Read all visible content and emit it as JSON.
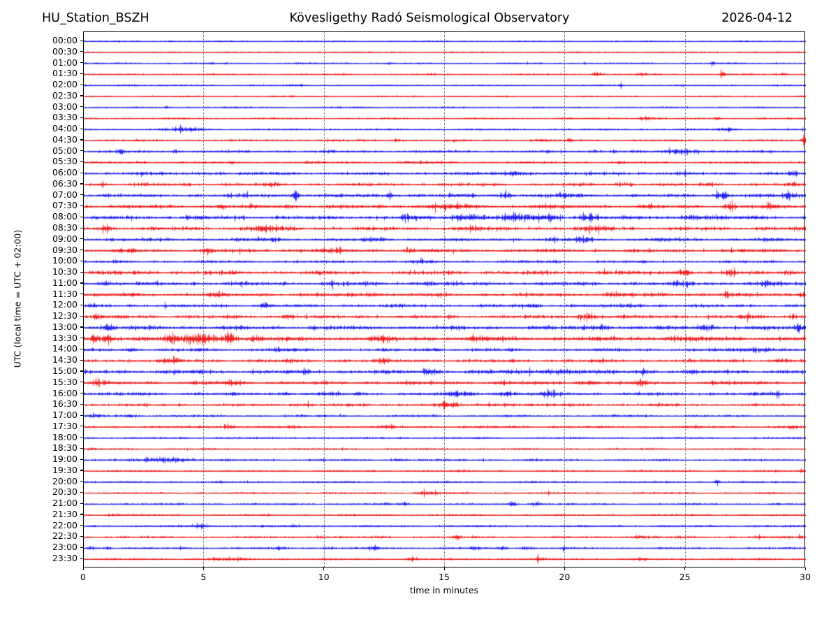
{
  "header": {
    "station": "HU_Station_BSZH",
    "observatory": "Kövesligethy Radó Seismological Observatory",
    "date": "2026-04-12"
  },
  "axes": {
    "xlabel": "time in minutes",
    "ylabel": "UTC (local time = UTC + 02:00)",
    "xticks": [
      0,
      5,
      10,
      15,
      20,
      25,
      30
    ],
    "x_range_minutes": [
      0,
      30
    ],
    "grid_vertical_dotted_at_minutes": [
      5,
      10,
      15,
      20,
      25
    ]
  },
  "colors": {
    "trace_even": "#0000ee",
    "trace_odd": "#ee0000",
    "grid": "#6e6e6e",
    "frame": "#000000",
    "background": "#ffffff"
  },
  "chart_data": {
    "type": "line",
    "subtype": "helicorder-dayplot",
    "title": "Kövesligethy Radó Seismological Observatory",
    "station": "HU_Station_BSZH",
    "date": "2026-04-12",
    "xlabel": "time in minutes",
    "ylabel": "UTC (local time = UTC + 02:00)",
    "minutes_per_row": 30,
    "x_ticks": [
      0,
      5,
      10,
      15,
      20,
      25,
      30
    ],
    "legend": "none",
    "grid_on": true,
    "amplitude_units": "relative (px half-amplitude); bursts = [center_minute, peak_amplitude, sigma_minutes]",
    "rows": [
      {
        "utc": "00:00",
        "color": "blue",
        "base_amplitude": 0.55,
        "bursts": [
          [
            3.6,
            1.2,
            0.05
          ]
        ]
      },
      {
        "utc": "00:30",
        "color": "red",
        "base_amplitude": 0.55,
        "bursts": []
      },
      {
        "utc": "01:00",
        "color": "blue",
        "base_amplitude": 0.6,
        "bursts": [
          [
            5.3,
            1.3,
            0.06
          ],
          [
            5.9,
            1.3,
            0.06
          ],
          [
            12.6,
            1.2,
            0.05
          ],
          [
            20.8,
            1.2,
            0.05
          ],
          [
            26.1,
            1.5,
            0.08
          ]
        ]
      },
      {
        "utc": "01:30",
        "color": "red",
        "base_amplitude": 0.6,
        "bursts": [
          [
            21.3,
            1.6,
            0.15
          ],
          [
            23.2,
            1.5,
            0.1
          ],
          [
            26.5,
            1.6,
            0.12
          ],
          [
            29.1,
            1.4,
            0.1
          ]
        ]
      },
      {
        "utc": "02:00",
        "color": "blue",
        "base_amplitude": 0.6,
        "bursts": [
          [
            1.9,
            1.0,
            0.3
          ],
          [
            9.0,
            0.8,
            0.1
          ],
          [
            22.3,
            2.6,
            0.05
          ]
        ]
      },
      {
        "utc": "02:30",
        "color": "red",
        "base_amplitude": 0.55,
        "bursts": []
      },
      {
        "utc": "03:00",
        "color": "blue",
        "base_amplitude": 0.6,
        "bursts": [
          [
            3.4,
            1.8,
            0.08
          ]
        ]
      },
      {
        "utc": "03:30",
        "color": "red",
        "base_amplitude": 0.65,
        "bursts": [
          [
            23.3,
            1.3,
            0.3
          ],
          [
            26.3,
            1.2,
            0.1
          ],
          [
            28.2,
            1.2,
            0.1
          ]
        ]
      },
      {
        "utc": "04:00",
        "color": "blue",
        "base_amplitude": 0.65,
        "bursts": [
          [
            4.2,
            2.0,
            0.45
          ],
          [
            26.7,
            1.3,
            0.3
          ]
        ]
      },
      {
        "utc": "04:30",
        "color": "red",
        "base_amplitude": 0.8,
        "bursts": [
          [
            13.0,
            1.2,
            0.2
          ],
          [
            19.0,
            1.0,
            0.2
          ],
          [
            20.2,
            1.8,
            0.1
          ],
          [
            29.9,
            3.5,
            0.08
          ]
        ]
      },
      {
        "utc": "05:00",
        "color": "blue",
        "base_amplitude": 1.0,
        "bursts": [
          [
            1.5,
            1.8,
            0.12
          ],
          [
            3.8,
            1.5,
            0.1
          ],
          [
            21.2,
            1.8,
            0.1
          ],
          [
            22.0,
            1.5,
            0.1
          ],
          [
            25.0,
            2.2,
            0.5
          ]
        ]
      },
      {
        "utc": "05:30",
        "color": "red",
        "base_amplitude": 0.9,
        "bursts": [
          [
            14.0,
            0.8,
            0.3
          ]
        ]
      },
      {
        "utc": "06:00",
        "color": "blue",
        "base_amplitude": 1.2,
        "bursts": [
          [
            2.3,
            1.2,
            0.15
          ],
          [
            5.6,
            1.0,
            0.2
          ],
          [
            18.0,
            1.5,
            0.6
          ],
          [
            22.2,
            1.3,
            0.2
          ],
          [
            29.5,
            1.8,
            0.15
          ]
        ]
      },
      {
        "utc": "06:30",
        "color": "red",
        "base_amplitude": 1.2,
        "bursts": [
          [
            0.8,
            1.5,
            0.1
          ],
          [
            7.8,
            1.3,
            0.15
          ],
          [
            22.5,
            1.2,
            0.3
          ],
          [
            26.0,
            1.2,
            0.2
          ],
          [
            29.5,
            1.5,
            0.15
          ]
        ]
      },
      {
        "utc": "07:00",
        "color": "blue",
        "base_amplitude": 1.4,
        "bursts": [
          [
            8.8,
            5.5,
            0.1
          ],
          [
            12.7,
            4.8,
            0.09
          ],
          [
            17.5,
            2.2,
            0.2
          ],
          [
            20.0,
            1.5,
            0.3
          ],
          [
            26.5,
            4.2,
            0.18
          ],
          [
            29.3,
            5.5,
            0.15
          ]
        ]
      },
      {
        "utc": "07:30",
        "color": "red",
        "base_amplitude": 1.4,
        "bursts": [
          [
            5.7,
            2.2,
            0.12
          ],
          [
            8.5,
            1.5,
            0.2
          ],
          [
            15.0,
            2.0,
            0.7
          ],
          [
            19.0,
            1.5,
            0.3
          ],
          [
            23.5,
            1.5,
            0.2
          ],
          [
            26.8,
            3.0,
            0.15
          ],
          [
            28.5,
            1.8,
            0.2
          ]
        ]
      },
      {
        "utc": "08:00",
        "color": "blue",
        "base_amplitude": 1.5,
        "bursts": [
          [
            13.5,
            1.8,
            0.4
          ],
          [
            16.0,
            3.0,
            0.5
          ],
          [
            18.0,
            3.2,
            0.4
          ],
          [
            19.3,
            3.5,
            0.3
          ],
          [
            21.0,
            2.8,
            0.3
          ],
          [
            25.3,
            2.0,
            0.3
          ]
        ]
      },
      {
        "utc": "08:30",
        "color": "red",
        "base_amplitude": 1.5,
        "bursts": [
          [
            0.9,
            2.5,
            0.15
          ],
          [
            7.5,
            2.2,
            0.4
          ],
          [
            16.2,
            1.8,
            0.2
          ],
          [
            21.5,
            1.6,
            0.3
          ]
        ]
      },
      {
        "utc": "09:00",
        "color": "blue",
        "base_amplitude": 1.3,
        "bursts": [
          [
            7.8,
            1.5,
            0.2
          ],
          [
            12.0,
            1.3,
            0.3
          ],
          [
            20.7,
            3.0,
            0.25
          ],
          [
            24.0,
            1.3,
            0.3
          ]
        ]
      },
      {
        "utc": "09:30",
        "color": "red",
        "base_amplitude": 1.3,
        "bursts": [
          [
            2.0,
            1.5,
            0.2
          ],
          [
            5.2,
            1.5,
            0.2
          ],
          [
            10.0,
            1.4,
            0.3
          ],
          [
            13.5,
            1.5,
            0.2
          ]
        ]
      },
      {
        "utc": "10:00",
        "color": "blue",
        "base_amplitude": 1.0,
        "bursts": [
          [
            14.0,
            1.0,
            0.3
          ]
        ]
      },
      {
        "utc": "10:30",
        "color": "red",
        "base_amplitude": 1.5,
        "bursts": [
          [
            21.7,
            1.5,
            0.2
          ],
          [
            25.0,
            2.5,
            0.2
          ],
          [
            26.8,
            1.6,
            0.2
          ],
          [
            29.3,
            1.5,
            0.2
          ]
        ]
      },
      {
        "utc": "11:00",
        "color": "blue",
        "base_amplitude": 1.5,
        "bursts": [
          [
            0.9,
            2.0,
            0.15
          ],
          [
            10.3,
            2.8,
            0.12
          ],
          [
            14.2,
            1.8,
            0.2
          ],
          [
            25.0,
            1.6,
            0.3
          ],
          [
            28.5,
            2.0,
            0.2
          ]
        ]
      },
      {
        "utc": "11:30",
        "color": "red",
        "base_amplitude": 1.4,
        "bursts": [
          [
            5.5,
            1.6,
            0.2
          ],
          [
            12.0,
            1.5,
            0.25
          ],
          [
            22.0,
            1.5,
            0.3
          ],
          [
            26.7,
            3.0,
            0.12
          ],
          [
            29.8,
            1.8,
            0.1
          ]
        ]
      },
      {
        "utc": "12:00",
        "color": "blue",
        "base_amplitude": 1.2,
        "bursts": [
          [
            7.5,
            2.8,
            0.1
          ],
          [
            18.5,
            1.4,
            0.3
          ],
          [
            22.8,
            1.5,
            0.2
          ]
        ]
      },
      {
        "utc": "12:30",
        "color": "red",
        "base_amplitude": 1.4,
        "bursts": [
          [
            0.5,
            2.2,
            0.1
          ],
          [
            8.5,
            1.6,
            0.2
          ],
          [
            21.0,
            3.0,
            0.35
          ],
          [
            27.5,
            1.6,
            0.2
          ],
          [
            29.5,
            1.8,
            0.15
          ]
        ]
      },
      {
        "utc": "13:00",
        "color": "blue",
        "base_amplitude": 1.6,
        "bursts": [
          [
            1.0,
            2.2,
            0.2
          ],
          [
            21.5,
            2.0,
            0.3
          ],
          [
            25.8,
            2.5,
            0.25
          ],
          [
            29.7,
            3.5,
            0.15
          ]
        ]
      },
      {
        "utc": "13:30",
        "color": "red",
        "base_amplitude": 1.8,
        "bursts": [
          [
            0.4,
            3.5,
            0.1
          ],
          [
            1.0,
            4.0,
            0.15
          ],
          [
            2.4,
            2.5,
            0.2
          ],
          [
            3.6,
            3.0,
            0.2
          ],
          [
            4.8,
            5.0,
            0.5
          ],
          [
            6.1,
            4.5,
            0.2
          ],
          [
            7.2,
            2.5,
            0.2
          ],
          [
            12.2,
            2.0,
            0.3
          ],
          [
            16.5,
            2.0,
            0.3
          ],
          [
            24.5,
            2.0,
            0.3
          ]
        ]
      },
      {
        "utc": "14:00",
        "color": "blue",
        "base_amplitude": 1.2,
        "bursts": [
          [
            2.0,
            1.3,
            0.2
          ],
          [
            8.0,
            1.5,
            0.2
          ],
          [
            14.5,
            1.4,
            0.2
          ],
          [
            28.0,
            2.0,
            0.5
          ]
        ]
      },
      {
        "utc": "14:30",
        "color": "red",
        "base_amplitude": 1.3,
        "bursts": [
          [
            3.8,
            2.8,
            0.15
          ],
          [
            12.5,
            1.8,
            0.2
          ],
          [
            29.0,
            1.5,
            0.2
          ]
        ]
      },
      {
        "utc": "15:00",
        "color": "blue",
        "base_amplitude": 1.6,
        "bursts": [
          [
            14.5,
            1.8,
            0.3
          ],
          [
            19.5,
            1.6,
            0.8
          ],
          [
            23.2,
            2.5,
            0.15
          ]
        ]
      },
      {
        "utc": "15:30",
        "color": "red",
        "base_amplitude": 1.4,
        "bursts": [
          [
            0.5,
            2.0,
            0.1
          ],
          [
            6.0,
            1.6,
            0.3
          ],
          [
            21.0,
            1.6,
            0.3
          ],
          [
            23.2,
            3.5,
            0.15
          ]
        ]
      },
      {
        "utc": "16:00",
        "color": "blue",
        "base_amplitude": 1.2,
        "bursts": [
          [
            8.3,
            1.8,
            0.15
          ],
          [
            15.7,
            1.8,
            0.4
          ],
          [
            17.6,
            2.0,
            0.3
          ],
          [
            19.4,
            2.2,
            0.3
          ],
          [
            28.8,
            2.2,
            0.15
          ]
        ]
      },
      {
        "utc": "16:30",
        "color": "red",
        "base_amplitude": 1.1,
        "bursts": [
          [
            9.0,
            1.2,
            0.3
          ],
          [
            15.0,
            1.6,
            0.4
          ],
          [
            17.5,
            1.4,
            0.3
          ]
        ]
      },
      {
        "utc": "17:00",
        "color": "blue",
        "base_amplitude": 0.9,
        "bursts": [
          [
            0.5,
            2.0,
            0.15
          ],
          [
            2.0,
            1.4,
            0.2
          ]
        ]
      },
      {
        "utc": "17:30",
        "color": "red",
        "base_amplitude": 0.9,
        "bursts": [
          [
            6.0,
            2.6,
            0.15
          ],
          [
            12.7,
            1.4,
            0.2
          ],
          [
            29.5,
            1.4,
            0.15
          ]
        ]
      },
      {
        "utc": "18:00",
        "color": "blue",
        "base_amplitude": 0.7,
        "bursts": []
      },
      {
        "utc": "18:30",
        "color": "red",
        "base_amplitude": 0.7,
        "bursts": [
          [
            0.3,
            1.5,
            0.08
          ]
        ]
      },
      {
        "utc": "19:00",
        "color": "blue",
        "base_amplitude": 0.8,
        "bursts": [
          [
            3.5,
            2.2,
            0.8
          ],
          [
            13.0,
            1.0,
            0.2
          ]
        ]
      },
      {
        "utc": "19:30",
        "color": "red",
        "base_amplitude": 0.7,
        "bursts": [
          [
            29.8,
            1.3,
            0.1
          ]
        ]
      },
      {
        "utc": "20:00",
        "color": "blue",
        "base_amplitude": 0.7,
        "bursts": [
          [
            26.3,
            2.5,
            0.07
          ]
        ]
      },
      {
        "utc": "20:30",
        "color": "red",
        "base_amplitude": 0.7,
        "bursts": [
          [
            14.3,
            2.2,
            0.3
          ]
        ]
      },
      {
        "utc": "21:00",
        "color": "blue",
        "base_amplitude": 0.8,
        "bursts": [
          [
            13.3,
            1.6,
            0.15
          ],
          [
            17.8,
            3.0,
            0.1
          ],
          [
            18.8,
            1.6,
            0.2
          ]
        ]
      },
      {
        "utc": "21:30",
        "color": "red",
        "base_amplitude": 0.7,
        "bursts": [
          [
            1.2,
            1.4,
            0.2
          ]
        ]
      },
      {
        "utc": "22:00",
        "color": "blue",
        "base_amplitude": 0.8,
        "bursts": [
          [
            4.9,
            2.0,
            0.25
          ],
          [
            8.8,
            1.4,
            0.15
          ]
        ]
      },
      {
        "utc": "22:30",
        "color": "red",
        "base_amplitude": 0.8,
        "bursts": [
          [
            9.8,
            1.6,
            0.12
          ],
          [
            15.5,
            1.3,
            0.15
          ],
          [
            23.0,
            1.3,
            0.3
          ],
          [
            28.0,
            1.3,
            0.15
          ],
          [
            29.8,
            1.5,
            0.1
          ]
        ]
      },
      {
        "utc": "23:00",
        "color": "blue",
        "base_amplitude": 0.8,
        "bursts": [
          [
            0.3,
            1.8,
            0.1
          ],
          [
            1.0,
            1.5,
            0.1
          ],
          [
            8.3,
            1.4,
            0.15
          ],
          [
            10.2,
            1.4,
            0.15
          ],
          [
            12.0,
            1.5,
            0.15
          ],
          [
            16.2,
            1.4,
            0.15
          ],
          [
            17.4,
            2.2,
            0.12
          ],
          [
            18.4,
            1.5,
            0.15
          ],
          [
            20.0,
            1.4,
            0.1
          ]
        ]
      },
      {
        "utc": "23:30",
        "color": "red",
        "base_amplitude": 0.75,
        "bursts": [
          [
            6.0,
            1.0,
            0.5
          ],
          [
            13.6,
            1.5,
            0.15
          ],
          [
            19.0,
            1.0,
            0.2
          ],
          [
            23.2,
            1.0,
            0.2
          ]
        ]
      }
    ]
  }
}
